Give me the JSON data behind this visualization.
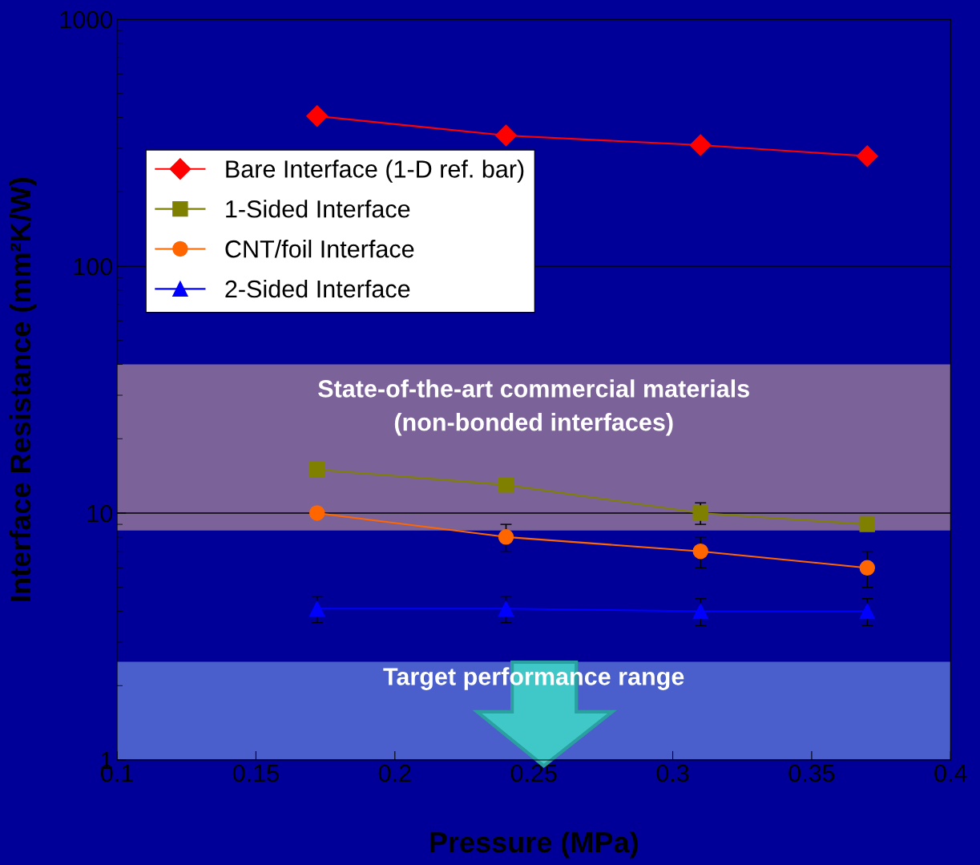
{
  "chart_data": {
    "type": "line",
    "xlabel": "Pressure (MPa)",
    "ylabel": "Interface Resistance (mm²K/W)",
    "log": "y",
    "xlim": [
      0.1,
      0.4
    ],
    "xticks": [
      0.1,
      0.15,
      0.2,
      0.25,
      0.3,
      0.35,
      0.4
    ],
    "ylim": [
      1,
      1000
    ],
    "yticks": [
      1,
      10,
      100,
      1000
    ],
    "grid": "y",
    "legend": "top left",
    "x": [
      0.172,
      0.24,
      0.31,
      0.37
    ],
    "series": [
      {
        "name": "Bare Interface (1-D ref. bar)",
        "color": "#ff0000",
        "marker": "diamond",
        "values": [
          405,
          338,
          309,
          279
        ]
      },
      {
        "name": "1-Sided Interface",
        "color": "#808000",
        "marker": "square",
        "values": [
          15,
          13,
          10,
          9.0
        ],
        "errors": [
          null,
          null,
          1,
          null
        ]
      },
      {
        "name": "CNT/foil Interface",
        "color": "#ff6600",
        "marker": "circle",
        "values": [
          10,
          8.0,
          7.0,
          6.0
        ],
        "errors": [
          null,
          1,
          1,
          1
        ]
      },
      {
        "name": "2-Sided Interface",
        "color": "#0000ff",
        "marker": "triangle",
        "values": [
          4.1,
          4.1,
          4.0,
          4.0
        ],
        "errors": [
          0.5,
          0.5,
          0.5,
          0.5
        ]
      }
    ],
    "bands": [
      {
        "axis": "y",
        "from": 8.5,
        "to": 40,
        "label": "State-of-the-art commercial materials\n(non-bonded interfaces)",
        "color": "#7b6399"
      },
      {
        "axis": "y",
        "from": 1,
        "to": 2.5,
        "label": "Target performance range",
        "color": "#4a5fcc"
      }
    ]
  }
}
